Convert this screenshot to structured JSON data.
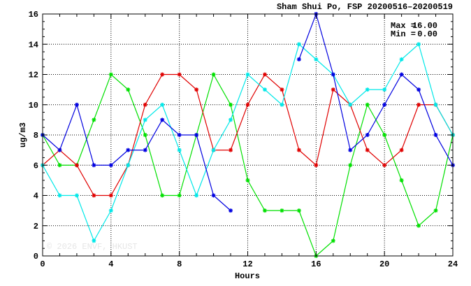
{
  "chart_data": {
    "type": "line",
    "title": "Sham Shui Po, FSP 20200516–20200519",
    "xlabel": "Hours",
    "ylabel": "ug/m3",
    "xlim": [
      0,
      24
    ],
    "ylim": [
      0,
      16
    ],
    "x_ticks": [
      0,
      4,
      8,
      12,
      16,
      20,
      24
    ],
    "y_ticks": [
      0,
      2,
      4,
      6,
      8,
      10,
      12,
      14,
      16
    ],
    "grid": true,
    "stats": {
      "max_label": "Max =",
      "max_value": "16.00",
      "min_label": "Min =",
      "min_value": "0.00"
    },
    "watermark": "© 2026  ENVF, HKUST",
    "x": [
      0,
      1,
      2,
      3,
      4,
      5,
      6,
      7,
      8,
      9,
      10,
      11,
      12,
      13,
      14,
      15,
      16,
      17,
      18,
      19,
      20,
      21,
      22,
      23,
      24
    ],
    "series": [
      {
        "color": "#00e000",
        "values": [
          8,
          6,
          6,
          9,
          12,
          11,
          8,
          4,
          4,
          8,
          12,
          10,
          5,
          3,
          3,
          3,
          0,
          1,
          6,
          10,
          8,
          5,
          2,
          3,
          8
        ]
      },
      {
        "color": "#e00000",
        "values": [
          6,
          7,
          6,
          4,
          4,
          6,
          10,
          12,
          12,
          11,
          7,
          7,
          10,
          12,
          11,
          7,
          6,
          11,
          10,
          7,
          6,
          7,
          10,
          10,
          8
        ]
      },
      {
        "color": "#00e8e8",
        "values": [
          6,
          4,
          4,
          1,
          3,
          6,
          9,
          10,
          7,
          4,
          7,
          9,
          12,
          11,
          10,
          14,
          13,
          12,
          10,
          11,
          11,
          13,
          14,
          10,
          8
        ]
      },
      {
        "color": "#0000e0",
        "values": [
          8,
          7,
          10,
          6,
          6,
          7,
          7,
          9,
          8,
          8,
          4,
          3,
          null,
          null,
          null,
          13,
          16,
          12,
          7,
          8,
          10,
          12,
          11,
          8,
          6
        ]
      }
    ]
  }
}
